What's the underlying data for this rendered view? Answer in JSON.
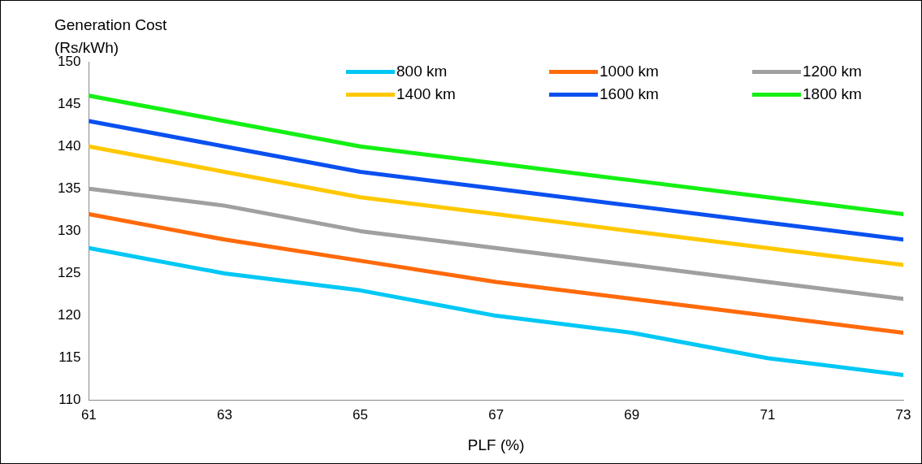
{
  "chart_data": {
    "type": "line",
    "xlabel": "PLF (%)",
    "ylabel": "Generation Cost (Rs/kWh)",
    "x": [
      61,
      63,
      65,
      67,
      69,
      71,
      73
    ],
    "series": [
      {
        "name": "800 km",
        "color": "#00c8f5",
        "values": [
          128,
          125,
          123,
          120,
          118,
          115,
          113
        ]
      },
      {
        "name": "1000 km",
        "color": "#ff6a0a",
        "values": [
          132,
          129,
          126.5,
          124,
          122,
          120,
          118
        ]
      },
      {
        "name": "1200 km",
        "color": "#a0a0a0",
        "values": [
          135,
          133,
          130,
          128,
          126,
          124,
          122
        ]
      },
      {
        "name": "1400 km",
        "color": "#ffc800",
        "values": [
          140,
          137,
          134,
          132,
          130,
          128,
          126
        ]
      },
      {
        "name": "1600 km",
        "color": "#0a50f0",
        "values": [
          143,
          140,
          137,
          135,
          133,
          131,
          129
        ]
      },
      {
        "name": "1800 km",
        "color": "#14f014",
        "values": [
          146,
          143,
          140,
          138,
          136,
          134,
          132
        ]
      }
    ],
    "xlim": [
      61,
      73
    ],
    "xticks": [
      61,
      63,
      65,
      67,
      69,
      71,
      73
    ],
    "ylim": [
      110,
      150
    ],
    "yticks": [
      110,
      115,
      120,
      125,
      130,
      135,
      140,
      145,
      150
    ],
    "grid": false,
    "legend": "top right",
    "marker": "none",
    "line_style": "solid"
  }
}
